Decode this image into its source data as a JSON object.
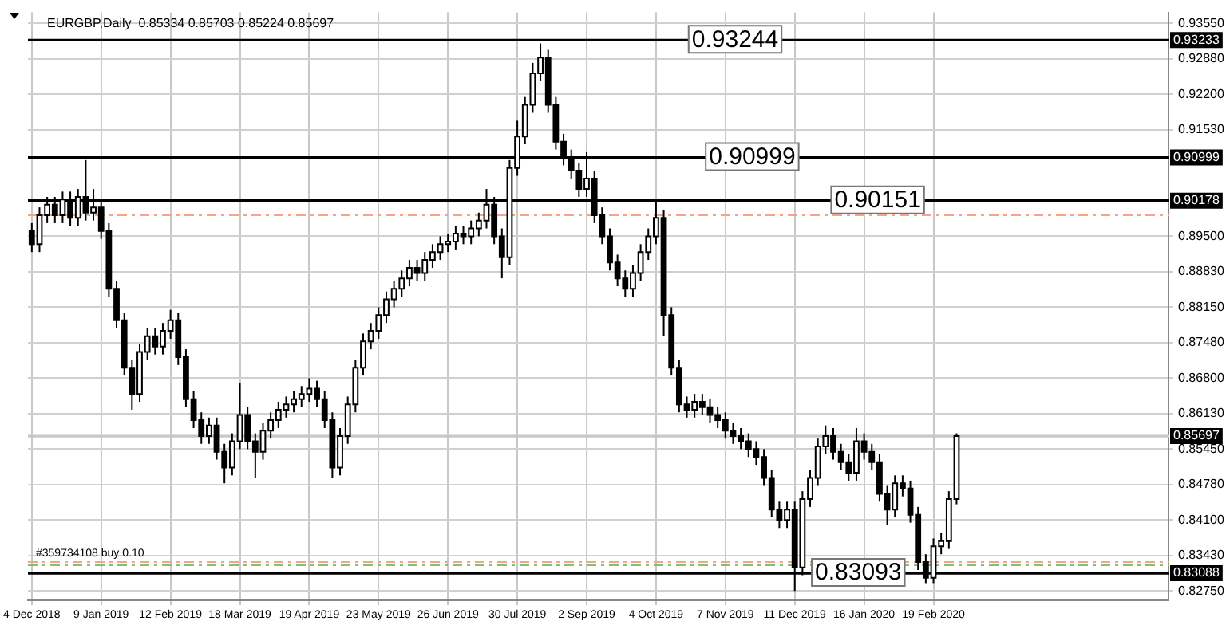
{
  "chart_data": {
    "type": "candlestick",
    "title": "EURGBP,Daily  0.85334 0.85703 0.85224 0.85697",
    "categories": [
      "4 Dec 2018",
      null,
      null,
      null,
      null,
      null,
      null,
      null,
      null,
      "9 Jan 2019",
      null,
      null,
      null,
      null,
      null,
      null,
      null,
      null,
      "12 Feb 2019",
      null,
      null,
      null,
      null,
      null,
      null,
      null,
      null,
      "18 Mar 2019",
      null,
      null,
      null,
      null,
      null,
      null,
      null,
      null,
      "19 Apr 2019",
      null,
      null,
      null,
      null,
      null,
      null,
      null,
      null,
      "23 May 2019",
      null,
      null,
      null,
      null,
      null,
      null,
      null,
      null,
      "26 Jun 2019",
      null,
      null,
      null,
      null,
      null,
      null,
      null,
      null,
      "30 Jul 2019",
      null,
      null,
      null,
      null,
      null,
      null,
      null,
      null,
      "2 Sep 2019",
      null,
      null,
      null,
      null,
      null,
      null,
      null,
      null,
      "4 Oct 2019",
      null,
      null,
      null,
      null,
      null,
      null,
      null,
      null,
      "7 Nov 2019",
      null,
      null,
      null,
      null,
      null,
      null,
      null,
      null,
      "11 Dec 2019",
      null,
      null,
      null,
      null,
      null,
      null,
      null,
      null,
      "16 Jan 2020",
      null,
      null,
      null,
      null,
      null,
      null,
      null,
      null,
      "19 Feb 2020",
      null,
      null,
      null,
      null,
      null,
      null,
      null,
      null,
      null,
      null,
      null,
      null,
      null,
      null,
      null,
      null,
      null,
      null,
      null,
      null,
      null,
      null,
      null,
      null,
      null,
      null,
      null,
      null,
      null,
      null
    ],
    "ohlc": [
      [
        0.896,
        0.8975,
        0.892,
        0.8935
      ],
      [
        0.8935,
        0.9005,
        0.892,
        0.899
      ],
      [
        0.899,
        0.9025,
        0.8975,
        0.901
      ],
      [
        0.901,
        0.9025,
        0.8975,
        0.899
      ],
      [
        0.899,
        0.9035,
        0.8975,
        0.902
      ],
      [
        0.902,
        0.9035,
        0.897,
        0.8985
      ],
      [
        0.8985,
        0.904,
        0.897,
        0.9025
      ],
      [
        0.9025,
        0.9095,
        0.898,
        0.8995
      ],
      [
        0.8995,
        0.904,
        0.898,
        0.9005
      ],
      [
        0.9005,
        0.902,
        0.8945,
        0.896
      ],
      [
        0.896,
        0.8975,
        0.8835,
        0.885
      ],
      [
        0.885,
        0.8865,
        0.8775,
        0.879
      ],
      [
        0.879,
        0.8805,
        0.8685,
        0.87
      ],
      [
        0.87,
        0.8715,
        0.862,
        0.865
      ],
      [
        0.865,
        0.8745,
        0.8635,
        0.873
      ],
      [
        0.873,
        0.8775,
        0.8715,
        0.876
      ],
      [
        0.876,
        0.8775,
        0.8725,
        0.874
      ],
      [
        0.874,
        0.8785,
        0.8725,
        0.877
      ],
      [
        0.877,
        0.881,
        0.8755,
        0.879
      ],
      [
        0.879,
        0.8805,
        0.8705,
        0.872
      ],
      [
        0.872,
        0.8735,
        0.8625,
        0.864
      ],
      [
        0.864,
        0.8655,
        0.8585,
        0.86
      ],
      [
        0.86,
        0.8615,
        0.8555,
        0.857
      ],
      [
        0.857,
        0.8605,
        0.8555,
        0.859
      ],
      [
        0.859,
        0.8605,
        0.8525,
        0.854
      ],
      [
        0.854,
        0.8555,
        0.848,
        0.851
      ],
      [
        0.851,
        0.8575,
        0.8495,
        0.856
      ],
      [
        0.856,
        0.867,
        0.8545,
        0.861
      ],
      [
        0.861,
        0.8625,
        0.8545,
        0.856
      ],
      [
        0.856,
        0.8575,
        0.849,
        0.854
      ],
      [
        0.854,
        0.8595,
        0.8525,
        0.858
      ],
      [
        0.858,
        0.8615,
        0.8565,
        0.86
      ],
      [
        0.86,
        0.8635,
        0.8585,
        0.862
      ],
      [
        0.862,
        0.8645,
        0.8605,
        0.863
      ],
      [
        0.863,
        0.8655,
        0.8615,
        0.864
      ],
      [
        0.864,
        0.8665,
        0.8625,
        0.865
      ],
      [
        0.865,
        0.868,
        0.8635,
        0.866
      ],
      [
        0.866,
        0.8675,
        0.8625,
        0.864
      ],
      [
        0.864,
        0.8655,
        0.8585,
        0.86
      ],
      [
        0.86,
        0.8615,
        0.849,
        0.851
      ],
      [
        0.851,
        0.8585,
        0.8495,
        0.857
      ],
      [
        0.857,
        0.8645,
        0.8555,
        0.863
      ],
      [
        0.863,
        0.8715,
        0.8615,
        0.87
      ],
      [
        0.87,
        0.8765,
        0.8685,
        0.875
      ],
      [
        0.875,
        0.8785,
        0.8735,
        0.877
      ],
      [
        0.877,
        0.8815,
        0.8755,
        0.88
      ],
      [
        0.88,
        0.8845,
        0.8785,
        0.883
      ],
      [
        0.883,
        0.8865,
        0.8815,
        0.885
      ],
      [
        0.885,
        0.8885,
        0.8835,
        0.887
      ],
      [
        0.887,
        0.8905,
        0.8855,
        0.889
      ],
      [
        0.889,
        0.8905,
        0.8865,
        0.888
      ],
      [
        0.888,
        0.892,
        0.8865,
        0.8905
      ],
      [
        0.8905,
        0.8935,
        0.889,
        0.892
      ],
      [
        0.892,
        0.895,
        0.8905,
        0.8935
      ],
      [
        0.8935,
        0.8955,
        0.892,
        0.894
      ],
      [
        0.894,
        0.897,
        0.8925,
        0.8955
      ],
      [
        0.8955,
        0.897,
        0.8935,
        0.895
      ],
      [
        0.895,
        0.898,
        0.8935,
        0.8965
      ],
      [
        0.8965,
        0.8995,
        0.895,
        0.898
      ],
      [
        0.898,
        0.904,
        0.8965,
        0.901
      ],
      [
        0.901,
        0.9025,
        0.8935,
        0.895
      ],
      [
        0.895,
        0.8965,
        0.887,
        0.891
      ],
      [
        0.891,
        0.9095,
        0.8895,
        0.908
      ],
      [
        0.908,
        0.917,
        0.9065,
        0.914
      ],
      [
        0.914,
        0.9215,
        0.9125,
        0.92
      ],
      [
        0.92,
        0.928,
        0.9185,
        0.926
      ],
      [
        0.926,
        0.9317,
        0.9245,
        0.929
      ],
      [
        0.929,
        0.9305,
        0.9185,
        0.92
      ],
      [
        0.92,
        0.9215,
        0.9115,
        0.913
      ],
      [
        0.913,
        0.9145,
        0.9085,
        0.91
      ],
      [
        0.91,
        0.9115,
        0.906,
        0.9075
      ],
      [
        0.9075,
        0.909,
        0.9025,
        0.904
      ],
      [
        0.904,
        0.911,
        0.9025,
        0.906
      ],
      [
        0.906,
        0.9075,
        0.8975,
        0.899
      ],
      [
        0.899,
        0.9005,
        0.8935,
        0.895
      ],
      [
        0.895,
        0.8965,
        0.8885,
        0.89
      ],
      [
        0.89,
        0.8915,
        0.8855,
        0.887
      ],
      [
        0.887,
        0.8885,
        0.8835,
        0.885
      ],
      [
        0.885,
        0.8895,
        0.8835,
        0.888
      ],
      [
        0.888,
        0.8935,
        0.8865,
        0.892
      ],
      [
        0.892,
        0.8965,
        0.8905,
        0.895
      ],
      [
        0.895,
        0.9015,
        0.8935,
        0.8985
      ],
      [
        0.8985,
        0.9,
        0.876,
        0.88
      ],
      [
        0.88,
        0.8815,
        0.8685,
        0.87
      ],
      [
        0.87,
        0.8715,
        0.8615,
        0.863
      ],
      [
        0.863,
        0.8645,
        0.8605,
        0.862
      ],
      [
        0.862,
        0.865,
        0.8605,
        0.8635
      ],
      [
        0.8635,
        0.865,
        0.861,
        0.8625
      ],
      [
        0.8625,
        0.864,
        0.8595,
        0.861
      ],
      [
        0.861,
        0.8625,
        0.8585,
        0.86
      ],
      [
        0.86,
        0.8615,
        0.8565,
        0.858
      ],
      [
        0.858,
        0.8595,
        0.8555,
        0.857
      ],
      [
        0.857,
        0.8585,
        0.8545,
        0.856
      ],
      [
        0.856,
        0.8575,
        0.853,
        0.8545
      ],
      [
        0.8545,
        0.856,
        0.8515,
        0.853
      ],
      [
        0.853,
        0.8545,
        0.8475,
        0.849
      ],
      [
        0.849,
        0.8505,
        0.8415,
        0.843
      ],
      [
        0.843,
        0.8445,
        0.8395,
        0.841
      ],
      [
        0.841,
        0.8445,
        0.8395,
        0.843
      ],
      [
        0.843,
        0.8445,
        0.8275,
        0.832
      ],
      [
        0.832,
        0.8465,
        0.8305,
        0.845
      ],
      [
        0.845,
        0.8505,
        0.8435,
        0.849
      ],
      [
        0.849,
        0.8565,
        0.8475,
        0.855
      ],
      [
        0.855,
        0.859,
        0.8535,
        0.857
      ],
      [
        0.857,
        0.8585,
        0.8525,
        0.854
      ],
      [
        0.854,
        0.8555,
        0.8505,
        0.852
      ],
      [
        0.852,
        0.8535,
        0.8485,
        0.85
      ],
      [
        0.85,
        0.8585,
        0.8485,
        0.856
      ],
      [
        0.856,
        0.8575,
        0.8525,
        0.854
      ],
      [
        0.854,
        0.8555,
        0.8505,
        0.852
      ],
      [
        0.852,
        0.8535,
        0.8445,
        0.846
      ],
      [
        0.846,
        0.8475,
        0.84,
        0.843
      ],
      [
        0.843,
        0.8495,
        0.8415,
        0.848
      ],
      [
        0.848,
        0.8495,
        0.8455,
        0.847
      ],
      [
        0.847,
        0.8485,
        0.8405,
        0.842
      ],
      [
        0.842,
        0.8435,
        0.8315,
        0.833
      ],
      [
        0.833,
        0.8345,
        0.829,
        0.83
      ],
      [
        0.83,
        0.8375,
        0.829,
        0.836
      ],
      [
        0.836,
        0.8385,
        0.8345,
        0.837
      ],
      [
        0.837,
        0.8465,
        0.8355,
        0.845
      ],
      [
        0.845,
        0.8575,
        0.844,
        0.857
      ],
      null,
      null,
      null,
      null,
      null,
      null,
      null,
      null,
      null,
      null,
      null,
      null,
      null,
      null,
      null,
      null,
      null,
      null,
      null,
      null,
      null,
      null,
      null,
      null,
      null,
      null,
      null
    ],
    "ylim": [
      0.8257,
      0.9376
    ],
    "yticks": [
      {
        "value": 0.9355,
        "label": "0.93550"
      },
      {
        "value": 0.9288,
        "label": "0.92880"
      },
      {
        "value": 0.922,
        "label": "0.92200"
      },
      {
        "value": 0.9153,
        "label": "0.91530"
      },
      {
        "value": 0.895,
        "label": "0.89500"
      },
      {
        "value": 0.8883,
        "label": "0.88830"
      },
      {
        "value": 0.8815,
        "label": "0.88150"
      },
      {
        "value": 0.8748,
        "label": "0.87480"
      },
      {
        "value": 0.868,
        "label": "0.86800"
      },
      {
        "value": 0.8613,
        "label": "0.86130"
      },
      {
        "value": 0.8545,
        "label": "0.85450"
      },
      {
        "value": 0.8478,
        "label": "0.84780"
      },
      {
        "value": 0.841,
        "label": "0.84100"
      },
      {
        "value": 0.8343,
        "label": "0.83430"
      },
      {
        "value": 0.8275,
        "label": "0.82750"
      }
    ],
    "annotations": [
      {
        "text": "0.93244",
        "y": 0.93233
      },
      {
        "text": "0.90999",
        "y": 0.90999
      },
      {
        "text": "0.90151",
        "y": 0.90178
      },
      {
        "text": "0.83093",
        "y": 0.83088
      }
    ],
    "ref_lines": [
      {
        "axis": "y",
        "value": 0.93233,
        "label": "0.93233",
        "color": "#000000"
      },
      {
        "axis": "y",
        "value": 0.90999,
        "label": "0.90999",
        "color": "#000000"
      },
      {
        "axis": "y",
        "value": 0.90178,
        "label": "0.90178",
        "color": "#000000"
      },
      {
        "axis": "y",
        "value": 0.83088,
        "label": "0.83088",
        "color": "#000000"
      },
      {
        "axis": "y",
        "value": 0.85697,
        "label": "0.85697",
        "color": "#c8c8c8"
      },
      {
        "axis": "y",
        "value": 0.899,
        "color": "#f4a582",
        "line_style": "dashed"
      },
      {
        "axis": "y",
        "value": 0.833,
        "label": "#359734108 buy 0.10",
        "color": "#f4a582",
        "line_style": "dashed"
      },
      {
        "axis": "y",
        "value": 0.8324,
        "color": "#7fbf7f",
        "line_style": "dashed"
      }
    ],
    "grid": true,
    "legend": false
  }
}
